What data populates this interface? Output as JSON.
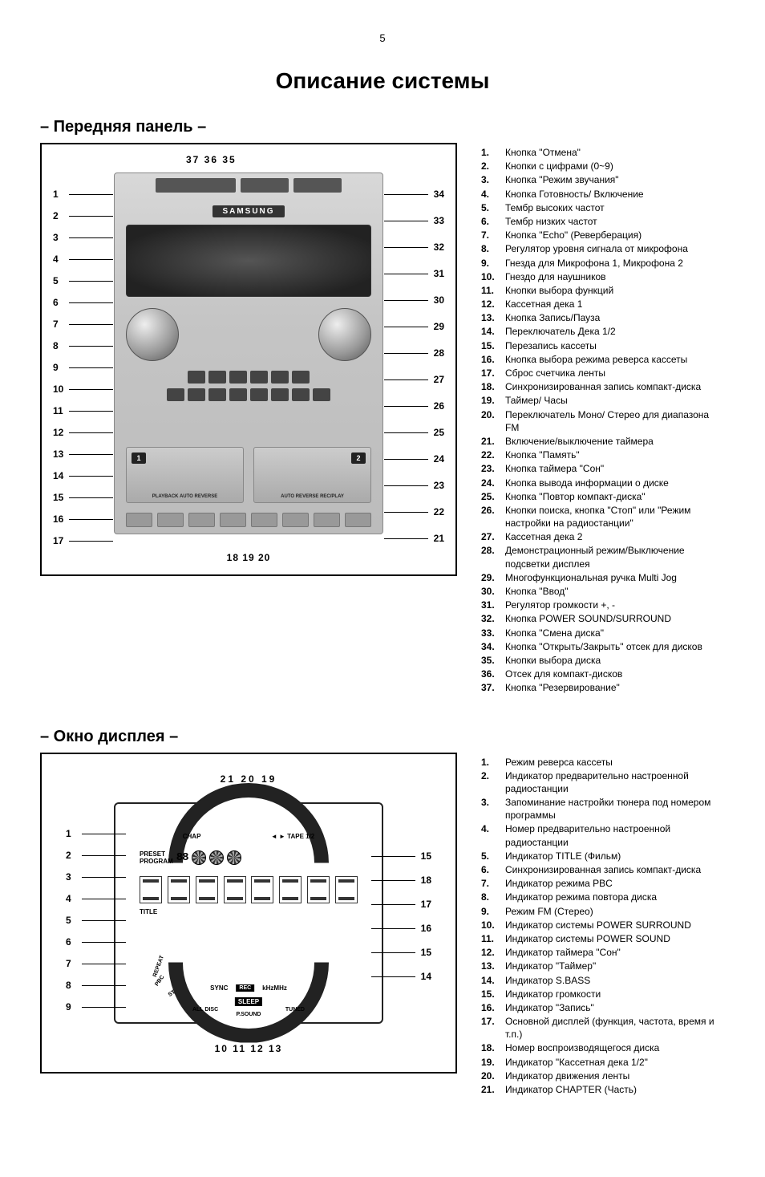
{
  "page_number": "5",
  "main_title": "Описание системы",
  "front_panel": {
    "heading": "– Передняя панель –",
    "brand_text": "SAMSUNG",
    "tape1_num": "1",
    "tape2_num": "2",
    "tape1_label": "PLAYBACK AUTO REVERSE",
    "tape2_label": "AUTO REVERSE REC/PLAY",
    "top_callouts": "37 36    35",
    "bottom_callouts": "18 19 20",
    "left_callouts": [
      "1",
      "2",
      "3",
      "4",
      "5",
      "6",
      "7",
      "8",
      "9",
      "10",
      "11",
      "12",
      "13",
      "14",
      "15",
      "16",
      "17"
    ],
    "right_callouts": [
      "34",
      "33",
      "32",
      "31",
      "30",
      "29",
      "28",
      "27",
      "26",
      "25",
      "24",
      "23",
      "22",
      "21"
    ],
    "legend": [
      {
        "n": "1.",
        "t": "Кнопка \"Отмена\""
      },
      {
        "n": "2.",
        "t": "Кнопки с цифрами (0~9)"
      },
      {
        "n": "3.",
        "t": "Кнопка \"Режим звучания\""
      },
      {
        "n": "4.",
        "t": "Кнопка Готовность/ Включение"
      },
      {
        "n": "5.",
        "t": "Тембр высоких частот"
      },
      {
        "n": "6.",
        "t": "Тембр низких частот"
      },
      {
        "n": "7.",
        "t": "Кнопка \"Echo\" (Реверберация)"
      },
      {
        "n": "8.",
        "t": "Регулятор уровня сигнала от микрофона"
      },
      {
        "n": "9.",
        "t": "Гнезда для Микрофона 1, Микрофона 2"
      },
      {
        "n": "10.",
        "t": "Гнездо для наушников"
      },
      {
        "n": "11.",
        "t": "Кнопки выбора функций"
      },
      {
        "n": "12.",
        "t": "Кассетная дека 1"
      },
      {
        "n": "13.",
        "t": "Кнопка Запись/Пауза"
      },
      {
        "n": "14.",
        "t": "Переключатель Дека 1/2"
      },
      {
        "n": "15.",
        "t": "Перезапись кассеты"
      },
      {
        "n": "16.",
        "t": "Кнопка выбора режима реверса кассеты"
      },
      {
        "n": "17.",
        "t": "Сброс счетчика ленты"
      },
      {
        "n": "18.",
        "t": "Синхронизированная запись компакт-диска"
      },
      {
        "n": "19.",
        "t": "Таймер/ Часы"
      },
      {
        "n": "20.",
        "t": "Переключатель Моно/ Стерео для диапазона FM"
      },
      {
        "n": "21.",
        "t": "Включение/выключение таймера"
      },
      {
        "n": "22.",
        "t": "Кнопка \"Память\""
      },
      {
        "n": "23.",
        "t": "Кнопка таймера \"Сон\""
      },
      {
        "n": "24.",
        "t": "Кнопка вывода информации о диске"
      },
      {
        "n": "25.",
        "t": "Кнопка \"Повтор компакт-диска\""
      },
      {
        "n": "26.",
        "t": "Кнопки поиска, кнопка \"Стоп\" или \"Режим настройки на радиостанции\""
      },
      {
        "n": "27.",
        "t": "Кассетная дека 2"
      },
      {
        "n": "28.",
        "t": "Демонстрационный режим/Выключение подсветки дисплея"
      },
      {
        "n": "29.",
        "t": "Многофункциональная ручка Multi Jog"
      },
      {
        "n": "30.",
        "t": "Кнопка \"Ввод\""
      },
      {
        "n": "31.",
        "t": "Регулятор громкости +, -"
      },
      {
        "n": "32.",
        "t": "Кнопка POWER SOUND/SURROUND"
      },
      {
        "n": "33.",
        "t": "Кнопка \"Смена диска\""
      },
      {
        "n": "34.",
        "t": "Кнопка \"Открыть/Закрыть\" отсек для дисков"
      },
      {
        "n": "35.",
        "t": "Кнопки выбора диска"
      },
      {
        "n": "36.",
        "t": "Отсек для компакт-дисков"
      },
      {
        "n": "37.",
        "t": "Кнопка \"Резервирование\""
      }
    ]
  },
  "display_window": {
    "heading": "– Окно дисплея –",
    "top_callouts": "21   20   19",
    "bottom_callouts": "10    11       12  13",
    "left_callouts": [
      "1",
      "2",
      "3",
      "4",
      "5",
      "6",
      "7",
      "8",
      "9"
    ],
    "right_callouts": [
      "15",
      "18",
      "17",
      "16",
      "15",
      "14"
    ],
    "icons": {
      "chap": "CHAP",
      "tape": "◄ ► TAPE 1/2",
      "preset": "PRESET",
      "program": "PROGRAM",
      "seg": "88",
      "title": "TITLE",
      "sync": "SYNC",
      "rec": "REC",
      "khz": "kHzMHz",
      "sleep": "SLEEP",
      "pbc": "PBC",
      "repeat": "REPEAT",
      "st": "ST",
      "psound": "P.SOUND",
      "alldisc": "ALL DISC",
      "tuned": "TUNED"
    },
    "legend": [
      {
        "n": "1.",
        "t": "Режим реверса кассеты"
      },
      {
        "n": "2.",
        "t": "Индикатор предварительно настроенной радиостанции"
      },
      {
        "n": "3.",
        "t": "Запоминание настройки тюнера под номером программы"
      },
      {
        "n": "4.",
        "t": "Номер предварительно настроенной радиостанции"
      },
      {
        "n": "5.",
        "t": "Индикатор TITLE (Фильм)"
      },
      {
        "n": "6.",
        "t": "Синхронизированная запись компакт-диска"
      },
      {
        "n": "7.",
        "t": "Индикатор режима PBC"
      },
      {
        "n": "8.",
        "t": "Индикатор режима повтора диска"
      },
      {
        "n": "9.",
        "t": "Режим FM (Стерео)"
      },
      {
        "n": "10.",
        "t": "Индикатор системы POWER SURROUND"
      },
      {
        "n": "11.",
        "t": "Индикатор системы POWER SOUND"
      },
      {
        "n": "12.",
        "t": "Индикатор таймера \"Сон\""
      },
      {
        "n": "13.",
        "t": "Индикатор \"Таймер\""
      },
      {
        "n": "14.",
        "t": "Индикатор S.BASS"
      },
      {
        "n": "15.",
        "t": "Индикатор громкости"
      },
      {
        "n": "16.",
        "t": "Индикатор \"Запись\""
      },
      {
        "n": "17.",
        "t": "Основной дисплей (функция, частота, время и т.п.)"
      },
      {
        "n": "18.",
        "t": "Номер воспроизводящегося диска"
      },
      {
        "n": "19.",
        "t": "Индикатор \"Кассетная дека 1/2\""
      },
      {
        "n": "20.",
        "t": "Индикатор движения ленты"
      },
      {
        "n": "21.",
        "t": "Индикатор CHAPTER (Часть)"
      }
    ]
  }
}
